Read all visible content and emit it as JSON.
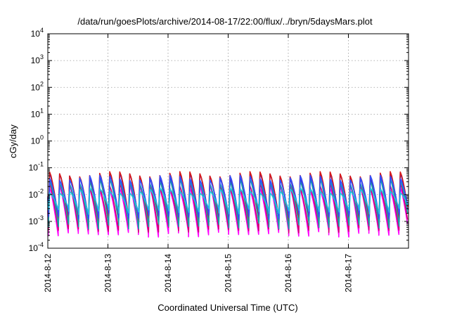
{
  "chart_data": {
    "type": "line",
    "title": "/data/run/goesPlots/archive/2014-08-17/22:00/flux/../bryn/5daysMars.plot",
    "xlabel": "Coordinated Universal Time (UTC)",
    "ylabel": "cGy/day",
    "yscale": "log",
    "ylim": [
      0.0001,
      10000
    ],
    "xlim": [
      "2014-08-12",
      "2014-08-18"
    ],
    "grid": true,
    "y_ticks": [
      {
        "base": "10",
        "exp": "-4",
        "value": 0.0001
      },
      {
        "base": "10",
        "exp": "-3",
        "value": 0.001
      },
      {
        "base": "10",
        "exp": "-2",
        "value": 0.01
      },
      {
        "base": "10",
        "exp": "-1",
        "value": 0.1
      },
      {
        "base": "10",
        "exp": "0",
        "value": 1
      },
      {
        "base": "10",
        "exp": "1",
        "value": 10
      },
      {
        "base": "10",
        "exp": "2",
        "value": 100
      },
      {
        "base": "10",
        "exp": "3",
        "value": 1000
      },
      {
        "base": "10",
        "exp": "4",
        "value": 10000
      }
    ],
    "x_ticks": [
      "2014-8-12",
      "2014-8-13",
      "2014-8-14",
      "2014-8-15",
      "2014-8-16",
      "2014-8-17"
    ],
    "cycles_per_day": 6,
    "series": [
      {
        "color": "#ff00ff",
        "peak": 0.018,
        "trough": 0.00035
      },
      {
        "color": "#d00070",
        "peak": 0.022,
        "trough": 0.0005
      },
      {
        "color": "#2a2ad8",
        "peak": 0.05,
        "trough": 0.0011
      },
      {
        "color": "#d81818",
        "peak": 0.058,
        "trough": 0.0013
      },
      {
        "color": "#18a0a8",
        "peak": 0.03,
        "trough": 0.0007
      },
      {
        "color": "#3050ff",
        "peak": 0.042,
        "trough": 0.0016
      },
      {
        "color": "#20c0e0",
        "peak": 0.014,
        "trough": 0.0025
      }
    ]
  }
}
